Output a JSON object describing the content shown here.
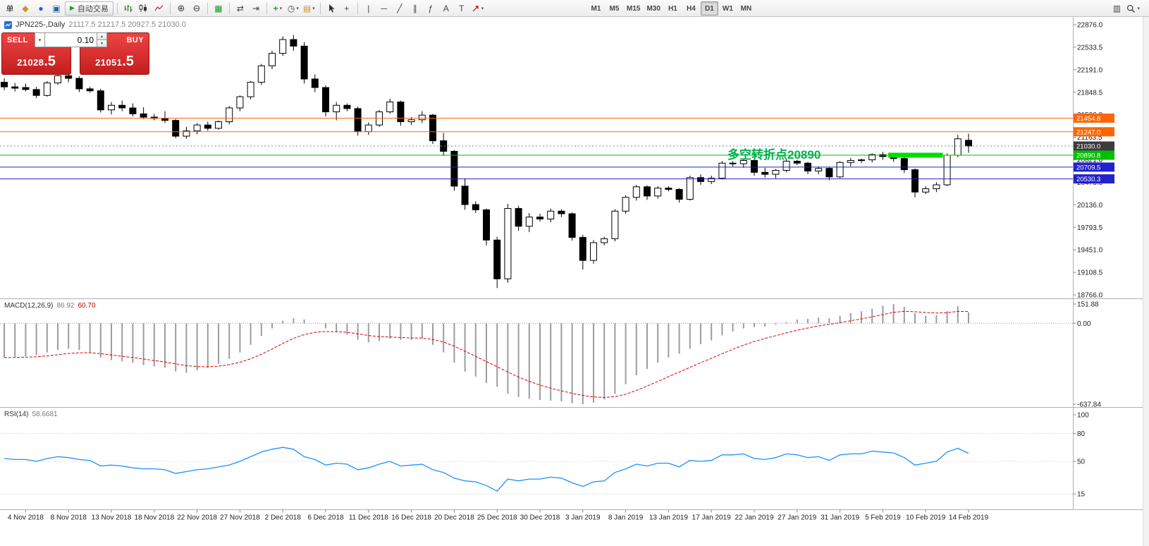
{
  "toolbar": {
    "order_label": "单",
    "autotrading_label": "自动交易",
    "icons": {
      "profiles": "◆",
      "market": "●",
      "terminal": "▣",
      "play": "▶",
      "zoom_in": "⊕",
      "zoom_out": "⊖",
      "tile_windows": "▦",
      "auto_scroll": "⇄",
      "chart_shift": "⇥",
      "add_indicator": "+",
      "periods": "◷",
      "templates": "▤",
      "crosshair": "+",
      "dropdown": "▾",
      "panel": "▥"
    },
    "tool_glyphs": {
      "vline": "|",
      "hline": "─",
      "trendline": "╱",
      "channel": "∥",
      "fibonacci": "ƒ",
      "text": "A",
      "label": "T"
    },
    "timeframes": [
      "M1",
      "M5",
      "M15",
      "M30",
      "H1",
      "H4",
      "D1",
      "W1",
      "MN"
    ],
    "active_timeframe": "D1"
  },
  "chart_header": {
    "symbol_period": "JPN225-,Daily",
    "ohlc": "21117.5 21217.5 20927.5 21030.0"
  },
  "trade_panel": {
    "sell_label": "SELL",
    "buy_label": "BUY",
    "lot": "0.10",
    "dropdown_glyph": "▾",
    "spin_up": "▴",
    "spin_down": "▾",
    "sell_price_main": "21028",
    "sell_price_pips": ".5",
    "buy_price_main": "21051",
    "buy_price_pips": ".5"
  },
  "annotation": {
    "text": "多空转折点20890",
    "color": "#00b050"
  },
  "indicators": {
    "macd": {
      "name": "MACD(12,26,9)",
      "main": "86.92",
      "signal": "60.70"
    },
    "rsi": {
      "name": "RSI(14)",
      "value": "58.6681"
    }
  },
  "levels": [
    {
      "price": 21454.8,
      "label": "21454.8",
      "color": "#ff6600",
      "type": "resistance"
    },
    {
      "price": 21247.0,
      "label": "21247.0",
      "color": "#ff6600",
      "type": "resistance"
    },
    {
      "price": 21030.0,
      "label": "21030.0",
      "color": "#3c3c3c",
      "type": "current"
    },
    {
      "price": 20890.8,
      "label": "20890.8",
      "color": "#00c000",
      "type": "pivot"
    },
    {
      "price": 20709.5,
      "label": "20709.5",
      "color": "#2222cc",
      "type": "support"
    },
    {
      "price": 20530.3,
      "label": "20530.3",
      "color": "#2222cc",
      "type": "support"
    }
  ],
  "highlight": {
    "price": 20890.8,
    "start_index": 82.5,
    "end_index": 87.6,
    "color": "#00dd00"
  },
  "chart_data": {
    "type": "candlestick",
    "symbol": "JPN225",
    "period": "Daily",
    "price_axis": {
      "min": 18766.0,
      "max": 22876.0,
      "gridlines": 13
    },
    "candles": [
      [
        22000,
        22060,
        21880,
        21930
      ],
      [
        21930,
        21990,
        21860,
        21910
      ],
      [
        21920,
        21980,
        21860,
        21890
      ],
      [
        21890,
        21930,
        21760,
        21800
      ],
      [
        21800,
        22020,
        21780,
        21990
      ],
      [
        21990,
        22150,
        21960,
        22100
      ],
      [
        22100,
        22190,
        22000,
        22060
      ],
      [
        22060,
        22090,
        21850,
        21900
      ],
      [
        21900,
        21930,
        21840,
        21870
      ],
      [
        21870,
        21900,
        21540,
        21580
      ],
      [
        21580,
        21700,
        21510,
        21650
      ],
      [
        21650,
        21720,
        21560,
        21610
      ],
      [
        21610,
        21680,
        21480,
        21520
      ],
      [
        21520,
        21620,
        21440,
        21470
      ],
      [
        21470,
        21520,
        21420,
        21450
      ],
      [
        21450,
        21560,
        21380,
        21420
      ],
      [
        21420,
        21440,
        21150,
        21180
      ],
      [
        21180,
        21320,
        21140,
        21260
      ],
      [
        21260,
        21380,
        21210,
        21350
      ],
      [
        21350,
        21400,
        21260,
        21300
      ],
      [
        21300,
        21420,
        21280,
        21400
      ],
      [
        21400,
        21640,
        21360,
        21610
      ],
      [
        21610,
        21800,
        21560,
        21780
      ],
      [
        21780,
        22020,
        21740,
        22000
      ],
      [
        22000,
        22280,
        21960,
        22250
      ],
      [
        22250,
        22480,
        22200,
        22440
      ],
      [
        22440,
        22700,
        22400,
        22650
      ],
      [
        22650,
        22720,
        22480,
        22550
      ],
      [
        22550,
        22610,
        21980,
        22050
      ],
      [
        22050,
        22120,
        21850,
        21920
      ],
      [
        21920,
        21950,
        21480,
        21550
      ],
      [
        21550,
        21700,
        21420,
        21650
      ],
      [
        21650,
        21680,
        21560,
        21600
      ],
      [
        21600,
        21630,
        21190,
        21250
      ],
      [
        21250,
        21390,
        21200,
        21350
      ],
      [
        21350,
        21580,
        21320,
        21550
      ],
      [
        21550,
        21750,
        21520,
        21700
      ],
      [
        21700,
        21720,
        21340,
        21400
      ],
      [
        21400,
        21470,
        21350,
        21430
      ],
      [
        21430,
        21560,
        21380,
        21500
      ],
      [
        21500,
        21520,
        21060,
        21110
      ],
      [
        21110,
        21230,
        20880,
        20950
      ],
      [
        20950,
        20970,
        20350,
        20420
      ],
      [
        20420,
        20540,
        20060,
        20140
      ],
      [
        20140,
        20190,
        20010,
        20060
      ],
      [
        20060,
        20080,
        19520,
        19600
      ],
      [
        19600,
        19650,
        18870,
        19010
      ],
      [
        19010,
        20150,
        18950,
        20080
      ],
      [
        20080,
        20120,
        19740,
        19810
      ],
      [
        19810,
        20010,
        19720,
        19950
      ],
      [
        19950,
        20000,
        19880,
        19920
      ],
      [
        19920,
        20080,
        19870,
        20040
      ],
      [
        20040,
        20070,
        19950,
        20000
      ],
      [
        20000,
        20020,
        19590,
        19640
      ],
      [
        19640,
        19680,
        19150,
        19290
      ],
      [
        19290,
        19600,
        19240,
        19560
      ],
      [
        19560,
        19650,
        19520,
        19620
      ],
      [
        19620,
        20070,
        19580,
        20040
      ],
      [
        20040,
        20280,
        20000,
        20250
      ],
      [
        20250,
        20440,
        20200,
        20410
      ],
      [
        20410,
        20430,
        20210,
        20270
      ],
      [
        20270,
        20420,
        20230,
        20390
      ],
      [
        20390,
        20420,
        20340,
        20370
      ],
      [
        20370,
        20390,
        20170,
        20220
      ],
      [
        20220,
        20580,
        20200,
        20550
      ],
      [
        20550,
        20600,
        20440,
        20490
      ],
      [
        20490,
        20580,
        20450,
        20540
      ],
      [
        20540,
        20800,
        20520,
        20770
      ],
      [
        20770,
        20800,
        20720,
        20760
      ],
      [
        20760,
        20840,
        20700,
        20810
      ],
      [
        20810,
        20830,
        20580,
        20630
      ],
      [
        20630,
        20700,
        20550,
        20600
      ],
      [
        20600,
        20680,
        20540,
        20660
      ],
      [
        20660,
        20820,
        20630,
        20800
      ],
      [
        20800,
        20820,
        20740,
        20770
      ],
      [
        20770,
        20790,
        20600,
        20650
      ],
      [
        20650,
        20720,
        20600,
        20690
      ],
      [
        20690,
        20710,
        20510,
        20560
      ],
      [
        20560,
        20800,
        20540,
        20780
      ],
      [
        20780,
        20850,
        20720,
        20810
      ],
      [
        20810,
        20840,
        20770,
        20820
      ],
      [
        20820,
        20920,
        20780,
        20900
      ],
      [
        20900,
        20940,
        20820,
        20870
      ],
      [
        20870,
        20920,
        20790,
        20840
      ],
      [
        20840,
        20860,
        20620,
        20670
      ],
      [
        20670,
        20690,
        20250,
        20330
      ],
      [
        20330,
        20420,
        20300,
        20380
      ],
      [
        20380,
        20480,
        20330,
        20440
      ],
      [
        20440,
        20920,
        20420,
        20890
      ],
      [
        20890,
        21200,
        20860,
        21140
      ],
      [
        21117.5,
        21217.5,
        20927.5,
        21030.0
      ]
    ],
    "date_ticks": [
      {
        "index": 2,
        "label": "4 Nov 2018"
      },
      {
        "index": 6,
        "label": "8 Nov 2018"
      },
      {
        "index": 10,
        "label": "13 Nov 2018"
      },
      {
        "index": 14,
        "label": "18 Nov 2018"
      },
      {
        "index": 18,
        "label": "22 Nov 2018"
      },
      {
        "index": 22,
        "label": "27 Nov 2018"
      },
      {
        "index": 26,
        "label": "2 Dec 2018"
      },
      {
        "index": 30,
        "label": "6 Dec 2018"
      },
      {
        "index": 34,
        "label": "11 Dec 2018"
      },
      {
        "index": 38,
        "label": "16 Dec 2018"
      },
      {
        "index": 42,
        "label": "20 Dec 2018"
      },
      {
        "index": 46,
        "label": "25 Dec 2018"
      },
      {
        "index": 50,
        "label": "30 Dec 2018"
      },
      {
        "index": 54,
        "label": "3 Jan 2019"
      },
      {
        "index": 58,
        "label": "8 Jan 2019"
      },
      {
        "index": 62,
        "label": "13 Jan 2019"
      },
      {
        "index": 66,
        "label": "17 Jan 2019"
      },
      {
        "index": 70,
        "label": "22 Jan 2019"
      },
      {
        "index": 74,
        "label": "27 Jan 2019"
      },
      {
        "index": 78,
        "label": "31 Jan 2019"
      },
      {
        "index": 82,
        "label": "5 Feb 2019"
      },
      {
        "index": 86,
        "label": "10 Feb 2019"
      },
      {
        "index": 90,
        "label": "14 Feb 2019"
      }
    ],
    "macd": {
      "type": "histogram+signal",
      "axis_labels": [
        151.88,
        0.0,
        -637.84
      ],
      "histogram": [
        -270,
        -265,
        -260,
        -250,
        -230,
        -210,
        -200,
        -210,
        -230,
        -270,
        -290,
        -300,
        -310,
        -330,
        -340,
        -350,
        -380,
        -390,
        -370,
        -350,
        -320,
        -280,
        -230,
        -170,
        -100,
        -40,
        20,
        40,
        30,
        0,
        -40,
        -70,
        -90,
        -130,
        -150,
        -140,
        -120,
        -130,
        -130,
        -120,
        -170,
        -230,
        -310,
        -380,
        -420,
        -470,
        -500,
        -555,
        -580,
        -595,
        -605,
        -610,
        -615,
        -630,
        -637.84,
        -625,
        -600,
        -555,
        -480,
        -410,
        -360,
        -310,
        -270,
        -240,
        -200,
        -165,
        -135,
        -95,
        -65,
        -40,
        -30,
        -25,
        -10,
        10,
        30,
        35,
        45,
        40,
        60,
        80,
        95,
        115,
        140,
        151.88,
        130,
        80,
        60,
        65,
        95,
        135,
        86.92
      ]
    },
    "rsi": {
      "type": "line",
      "axis_labels": [
        100,
        80,
        50,
        15
      ],
      "levels": [
        80,
        50,
        15
      ],
      "values": [
        53,
        52,
        52,
        50,
        53,
        55,
        54,
        52,
        51,
        45,
        46,
        45,
        43,
        42,
        42,
        41,
        37,
        39,
        41,
        42,
        44,
        46,
        50,
        55,
        60,
        63,
        65,
        63,
        55,
        52,
        46,
        48,
        47,
        41,
        43,
        47,
        50,
        45,
        46,
        47,
        41,
        38,
        32,
        29,
        28,
        24,
        18,
        31,
        29,
        31,
        31,
        33,
        32,
        27,
        23,
        28,
        29,
        38,
        42,
        47,
        45,
        48,
        48,
        44,
        51,
        50,
        51,
        57,
        57,
        58,
        53,
        52,
        54,
        58,
        57,
        54,
        55,
        51,
        57,
        58,
        58,
        61,
        60,
        59,
        54,
        46,
        48,
        50,
        60,
        64,
        58.67
      ]
    }
  }
}
